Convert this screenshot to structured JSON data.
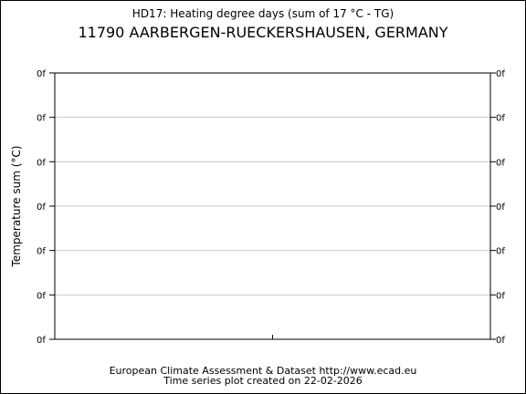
{
  "chart_data": {
    "type": "line",
    "title": "HD17: Heating degree days (sum of 17 °C - TG)",
    "subtitle": "11790 AARBERGEN-RUECKERSHAUSEN, GERMANY",
    "ylabel": "Temperature sum (°C)",
    "xlabel": "",
    "y_tick_labels": [
      "0f",
      "0f",
      "0f",
      "0f",
      "0f",
      "0f",
      "0f"
    ],
    "x_tick_labels": [],
    "series": [],
    "grid": true,
    "legend": "none"
  },
  "footer": {
    "source": "European Climate Assessment & Dataset  http://www.ecad.eu",
    "created": "Time series plot created on 22-02-2026"
  }
}
